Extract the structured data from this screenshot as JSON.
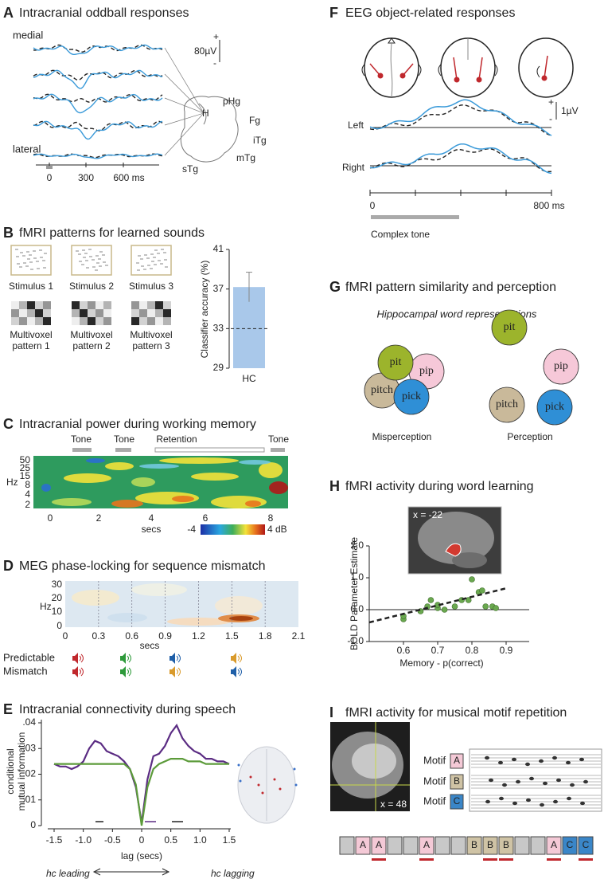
{
  "a": {
    "letter": "A",
    "title": "Intracranial oddball responses",
    "medial": "medial",
    "lateral": "lateral",
    "scale": {
      "plus": "+",
      "label": "80µV",
      "minus": "-"
    },
    "regions": [
      "H",
      "pHg",
      "Fg",
      "iTg",
      "mTg",
      "sTg"
    ],
    "xticks": [
      "0",
      "300",
      "600 ms"
    ]
  },
  "b": {
    "letter": "B",
    "title": "fMRI patterns for learned sounds",
    "stimuli": [
      "Stimulus 1",
      "Stimulus 2",
      "Stimulus 3"
    ],
    "patterns": [
      [
        "Multivoxel",
        "pattern 1"
      ],
      [
        "Multivoxel",
        "pattern 2"
      ],
      [
        "Multivoxel",
        "pattern 3"
      ]
    ],
    "chart": {
      "type": "bar",
      "ylabel": "Classifier accuracy (%)",
      "categories": [
        "HC"
      ],
      "values": [
        37.2
      ],
      "errors": [
        1.5
      ],
      "chance": 33,
      "color": "#a9c8ea",
      "ylim": [
        29,
        41
      ],
      "yticks": [
        29,
        33,
        37,
        41
      ]
    }
  },
  "c": {
    "letter": "C",
    "title": "Intracranial power during working memory",
    "events": [
      "Tone",
      "Tone",
      "Retention",
      "Tone"
    ],
    "ylabel": "Hz",
    "yticks": [
      "50",
      "25",
      "15",
      "8",
      "4",
      "2"
    ],
    "xticks": [
      "0",
      "2",
      "4",
      "6",
      "8"
    ],
    "xlabel": "secs",
    "colorbar": [
      "-4",
      "4 dB"
    ]
  },
  "d": {
    "letter": "D",
    "title": "MEG phase-locking for sequence mismatch",
    "ylabel": "Hz",
    "yticks": [
      "30",
      "20",
      "10",
      "0"
    ],
    "xticks": [
      "0",
      "0.3",
      "0.6",
      "0.9",
      "1.2",
      "1.5",
      "1.8",
      "2.1"
    ],
    "xlabel": "secs",
    "conditions": [
      "Predictable",
      "Mismatch"
    ]
  },
  "e": {
    "letter": "E",
    "title": "Intracranial connectivity during speech",
    "direction": [
      "hc leading",
      "hc lagging"
    ],
    "chart": {
      "type": "line",
      "ylabel": [
        "conditional",
        "mutual information"
      ],
      "xlabel": "lag (secs)",
      "x": [
        -1.5,
        -1.4,
        -1.3,
        -1.2,
        -1.1,
        -1.0,
        -0.9,
        -0.8,
        -0.7,
        -0.6,
        -0.5,
        -0.4,
        -0.3,
        -0.2,
        -0.1,
        0,
        0.1,
        0.2,
        0.3,
        0.4,
        0.5,
        0.6,
        0.7,
        0.8,
        0.9,
        1.0,
        1.1,
        1.2,
        1.3,
        1.4,
        1.5
      ],
      "series": [
        {
          "color": "#5b2c83",
          "values": [
            0.024,
            0.023,
            0.023,
            0.022,
            0.023,
            0.025,
            0.03,
            0.033,
            0.032,
            0.029,
            0.028,
            0.027,
            0.025,
            0.022,
            0.015,
            0.001,
            0.018,
            0.027,
            0.028,
            0.031,
            0.036,
            0.039,
            0.034,
            0.031,
            0.029,
            0.028,
            0.026,
            0.026,
            0.025,
            0.025,
            0.024
          ]
        },
        {
          "color": "#5c9b3a",
          "values": [
            0.024,
            0.024,
            0.024,
            0.024,
            0.024,
            0.024,
            0.024,
            0.024,
            0.024,
            0.024,
            0.024,
            0.024,
            0.024,
            0.022,
            0.016,
            0,
            0.015,
            0.022,
            0.024,
            0.025,
            0.026,
            0.026,
            0.026,
            0.025,
            0.025,
            0.025,
            0.024,
            0.024,
            0.024,
            0.024,
            0.024
          ]
        }
      ],
      "xlim": [
        -1.5,
        1.5
      ],
      "ylim": [
        0,
        0.04
      ],
      "xticks": [
        -1.5,
        {
          "value": -1,
          "label": "-1.0"
        },
        -0.5,
        0,
        0.5,
        {
          "value": 1,
          "label": "1.0"
        },
        1.5
      ],
      "yticks": [
        {
          "value": 0.04,
          "label": ".04"
        },
        {
          "value": 0.03,
          "label": ".03"
        },
        {
          "value": 0.02,
          "label": ".02"
        },
        {
          "value": 0.01,
          "label": ".01"
        },
        0
      ]
    }
  },
  "f": {
    "letter": "F",
    "title": "EEG object-related responses",
    "scale": {
      "plus": "+",
      "label": "1µV",
      "minus": "-"
    },
    "traces": [
      "Left",
      "Right"
    ],
    "xticks": [
      "0",
      "800 ms"
    ],
    "stimulus": "Complex tone"
  },
  "g": {
    "letter": "G",
    "title": "fMRI pattern similarity and perception",
    "subtitle": "Hippocampal  word representations",
    "words": [
      "pit",
      "pip",
      "pitch",
      "pick"
    ],
    "colors": [
      "#9cb42c",
      "#f6c8d8",
      "#c9b99a",
      "#2f8fd6"
    ],
    "conditions": [
      "Misperception",
      "Perception"
    ]
  },
  "h": {
    "letter": "H",
    "title": "fMRI activity during word learning",
    "inset": "x = -22",
    "chart": {
      "type": "scatter",
      "ylabel": "BOLD Parameter Estimate",
      "xlabel": "Memory - p(correct)",
      "color": "#6aa84f",
      "x": [
        0.6,
        0.6,
        0.65,
        0.67,
        0.68,
        0.7,
        0.7,
        0.72,
        0.75,
        0.77,
        0.79,
        0.8,
        0.82,
        0.83,
        0.84,
        0.86,
        0.87
      ],
      "values": [
        -0.3,
        -0.2,
        -0.05,
        0.1,
        0.3,
        0.05,
        0.15,
        0.0,
        0.1,
        0.3,
        0.3,
        0.95,
        0.55,
        0.6,
        0.1,
        0.1,
        0.05
      ],
      "trend": {
        "x": [
          0.5,
          0.9
        ],
        "values": [
          -0.4,
          0.67
        ]
      },
      "xlim": [
        0.5,
        0.95
      ],
      "ylim": [
        -1,
        2
      ],
      "xticks": [
        0.6,
        0.7,
        0.8,
        0.9
      ],
      "yticks": [
        {
          "value": 2,
          "label": "2.0"
        },
        {
          "value": 1,
          "label": "1.0"
        },
        {
          "value": 0,
          "label": "0.0"
        },
        {
          "value": -1,
          "label": "-1.0"
        }
      ]
    }
  },
  "i": {
    "letter": "I",
    "title": "fMRI activity for musical motif repetition",
    "inset": "x = 48",
    "motif_label": "Motif",
    "motifs": [
      "A",
      "B",
      "C"
    ],
    "colors": [
      "#f4c9d6",
      "#cfc3a5",
      "#3a86c8"
    ],
    "sequence": [
      null,
      "A",
      "A",
      null,
      null,
      "A",
      null,
      null,
      "B",
      "B",
      "B",
      null,
      null,
      "A",
      "C",
      "C"
    ]
  }
}
